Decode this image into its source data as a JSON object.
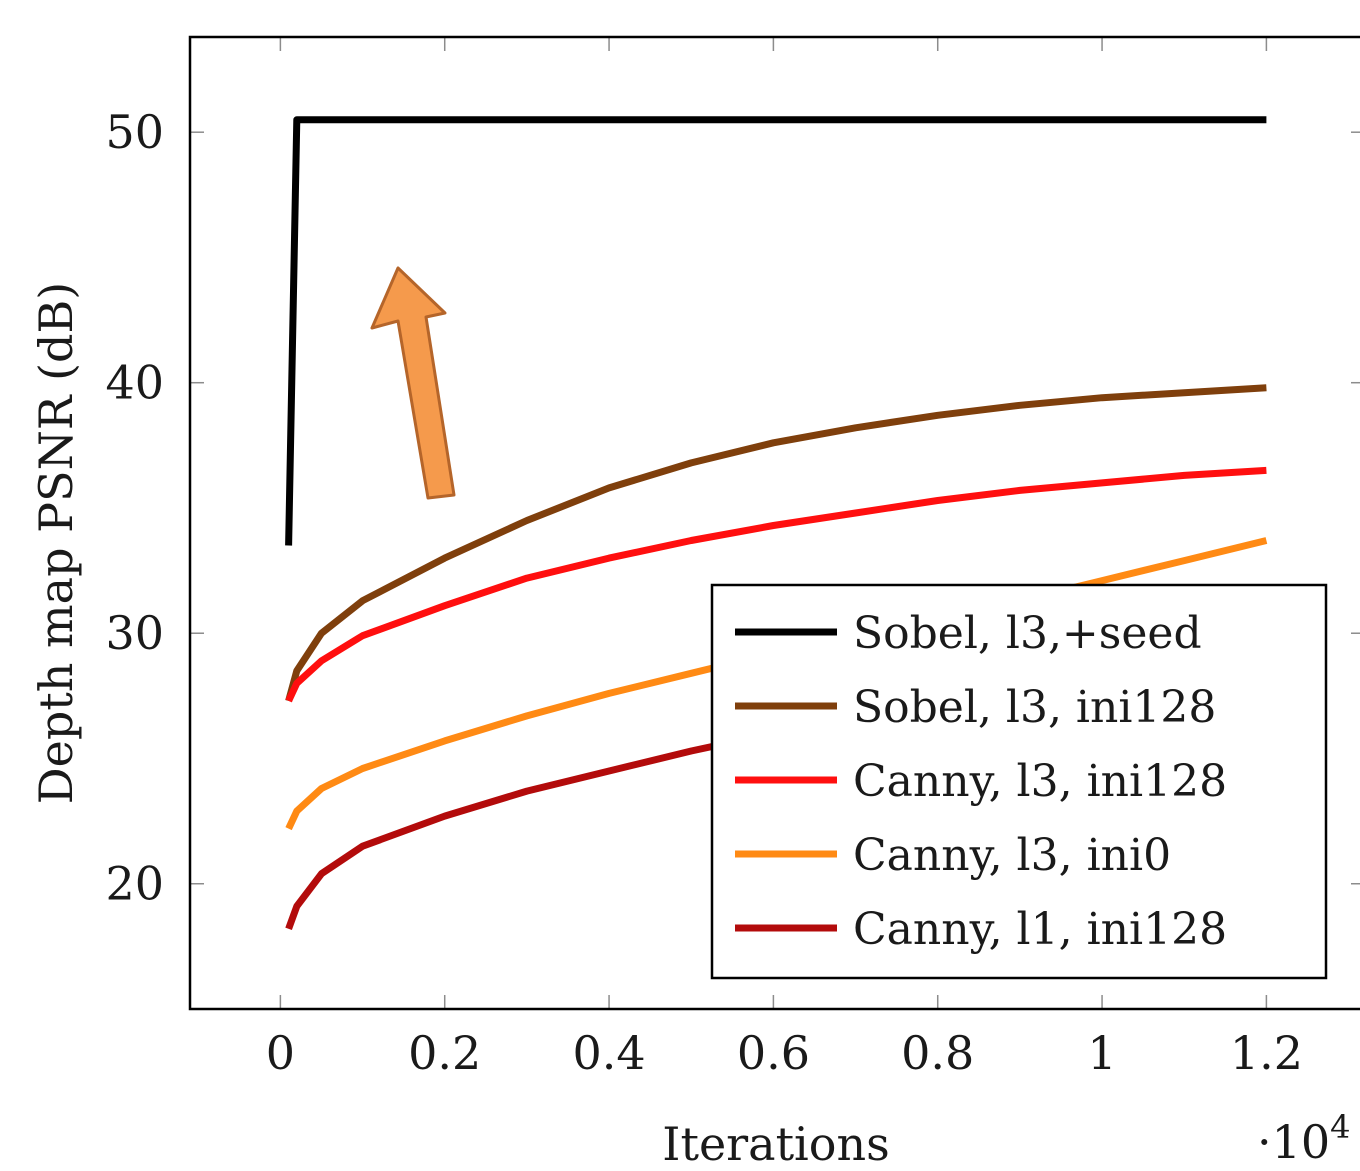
{
  "chart_data": {
    "type": "line",
    "xlabel": "Iterations",
    "ylabel": "Depth map PSNR (dB)",
    "x_multiplier_label": "·10",
    "x_multiplier_exponent": "4",
    "xlim": [
      -0.11,
      1.32
    ],
    "ylim": [
      15,
      53.8
    ],
    "xticks": [
      0,
      0.2,
      0.4,
      0.6,
      0.8,
      1,
      1.2
    ],
    "xtick_labels": [
      "0",
      "0.2",
      "0.4",
      "0.6",
      "0.8",
      "1",
      "1.2"
    ],
    "yticks": [
      20,
      30,
      40,
      50
    ],
    "ytick_labels": [
      "20",
      "30",
      "40",
      "50"
    ],
    "legend_position": "bottom-right",
    "grid": false,
    "annotation": {
      "kind": "arrow",
      "direction": "up",
      "color": "#F59A4C",
      "edge_color": "#B5652A"
    },
    "series": [
      {
        "name": "Sobel,  l3,+seed",
        "color": "#000000",
        "x": [
          0.01,
          0.02,
          0.03,
          0.1,
          0.2,
          0.4,
          0.6,
          0.8,
          1.0,
          1.2
        ],
        "y": [
          33.5,
          50.5,
          50.5,
          50.5,
          50.5,
          50.5,
          50.5,
          50.5,
          50.5,
          50.5
        ]
      },
      {
        "name": "Sobel,  l3, ini128",
        "color": "#7F3F0C",
        "x": [
          0.01,
          0.02,
          0.05,
          0.1,
          0.2,
          0.3,
          0.4,
          0.5,
          0.6,
          0.7,
          0.8,
          0.9,
          1.0,
          1.1,
          1.2
        ],
        "y": [
          27.3,
          28.5,
          30.0,
          31.3,
          33.0,
          34.5,
          35.8,
          36.8,
          37.6,
          38.2,
          38.7,
          39.1,
          39.4,
          39.6,
          39.8
        ]
      },
      {
        "name": "Canny, l3, ini128",
        "color": "#FF0F0F",
        "x": [
          0.01,
          0.02,
          0.05,
          0.1,
          0.2,
          0.3,
          0.4,
          0.5,
          0.6,
          0.7,
          0.8,
          0.9,
          1.0,
          1.1,
          1.2
        ],
        "y": [
          27.3,
          28.0,
          28.9,
          29.9,
          31.1,
          32.2,
          33.0,
          33.7,
          34.3,
          34.8,
          35.3,
          35.7,
          36.0,
          36.3,
          36.5
        ]
      },
      {
        "name": "Canny, l3, ini0",
        "color": "#FF8A14",
        "x": [
          0.01,
          0.02,
          0.05,
          0.1,
          0.2,
          0.3,
          0.4,
          0.5,
          0.6,
          0.7,
          0.8,
          0.9,
          1.0,
          1.1,
          1.2
        ],
        "y": [
          22.2,
          22.9,
          23.8,
          24.6,
          25.7,
          26.7,
          27.6,
          28.4,
          29.2,
          29.9,
          30.6,
          31.3,
          32.1,
          32.9,
          33.7
        ]
      },
      {
        "name": "Canny, l1, ini128",
        "color": "#B30B0B",
        "x": [
          0.01,
          0.02,
          0.05,
          0.1,
          0.2,
          0.3,
          0.4,
          0.5,
          0.6,
          0.7,
          0.8,
          0.9,
          1.0,
          1.1,
          1.2
        ],
        "y": [
          18.2,
          19.1,
          20.4,
          21.5,
          22.7,
          23.7,
          24.5,
          25.3,
          26.0,
          26.7,
          27.4,
          28.0,
          28.6,
          29.2,
          29.8
        ]
      }
    ]
  }
}
